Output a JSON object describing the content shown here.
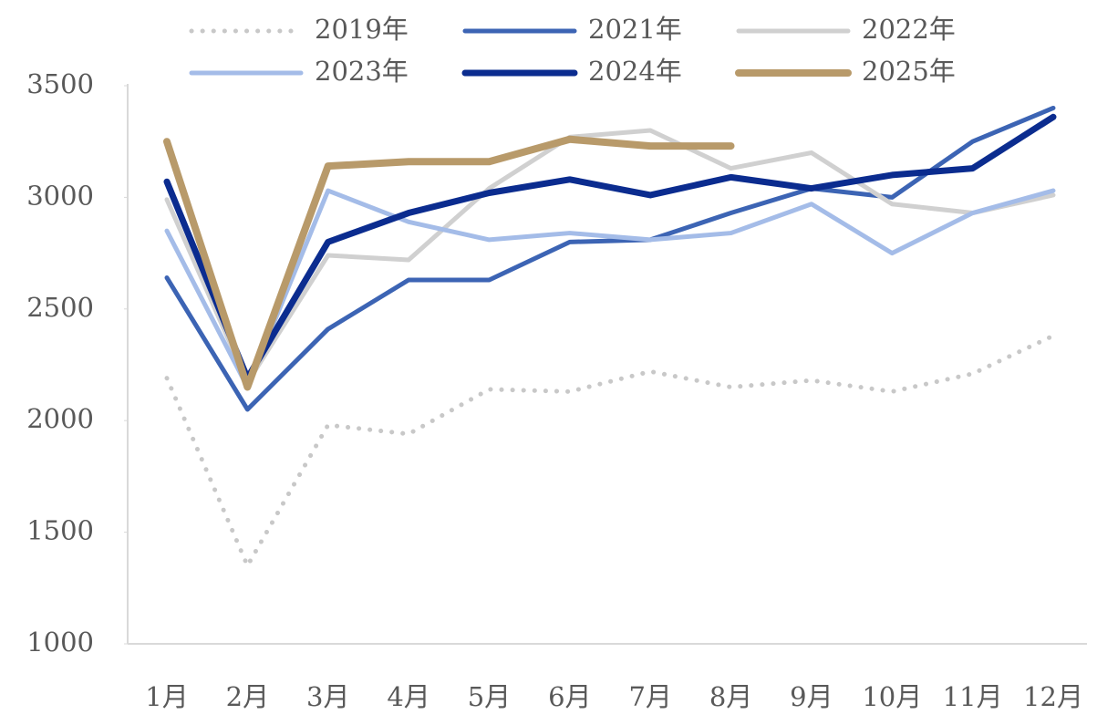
{
  "chart_data": {
    "type": "line",
    "categories": [
      "1月",
      "2月",
      "3月",
      "4月",
      "5月",
      "6月",
      "7月",
      "8月",
      "9月",
      "10月",
      "11月",
      "12月"
    ],
    "ylim": [
      1000,
      3500
    ],
    "yticks": [
      1000,
      1500,
      2000,
      2500,
      3000,
      3500
    ],
    "grid": false,
    "legend": "top",
    "series": [
      {
        "name": "2019年",
        "color": "#c8c8c8",
        "line_style": "dotted",
        "line_width": 5,
        "values": [
          2190,
          1350,
          1980,
          1940,
          2140,
          2130,
          2220,
          2150,
          2180,
          2130,
          2210,
          2380
        ]
      },
      {
        "name": "2021年",
        "color": "#3c64b4",
        "line_style": "solid",
        "line_width": 5,
        "values": [
          2640,
          2050,
          2410,
          2630,
          2630,
          2800,
          2810,
          2930,
          3040,
          3000,
          3250,
          3400
        ]
      },
      {
        "name": "2022年",
        "color": "#d0d0d0",
        "line_style": "solid",
        "line_width": 5,
        "values": [
          2990,
          2170,
          2740,
          2720,
          3040,
          3270,
          3300,
          3130,
          3200,
          2970,
          2930,
          3010
        ]
      },
      {
        "name": "2023年",
        "color": "#a4bce8",
        "line_style": "solid",
        "line_width": 5,
        "values": [
          2850,
          2150,
          3030,
          2890,
          2810,
          2840,
          2810,
          2840,
          2970,
          2750,
          2930,
          3030
        ]
      },
      {
        "name": "2024年",
        "color": "#0b2c8f",
        "line_style": "solid",
        "line_width": 7,
        "values": [
          3070,
          2190,
          2800,
          2930,
          3020,
          3080,
          3010,
          3090,
          3040,
          3100,
          3130,
          3360
        ]
      },
      {
        "name": "2025年",
        "color": "#b89a6a",
        "line_style": "solid",
        "line_width": 8,
        "values": [
          3250,
          2150,
          3140,
          3160,
          3160,
          3260,
          3230,
          3230,
          null,
          null,
          null,
          null
        ]
      }
    ]
  }
}
